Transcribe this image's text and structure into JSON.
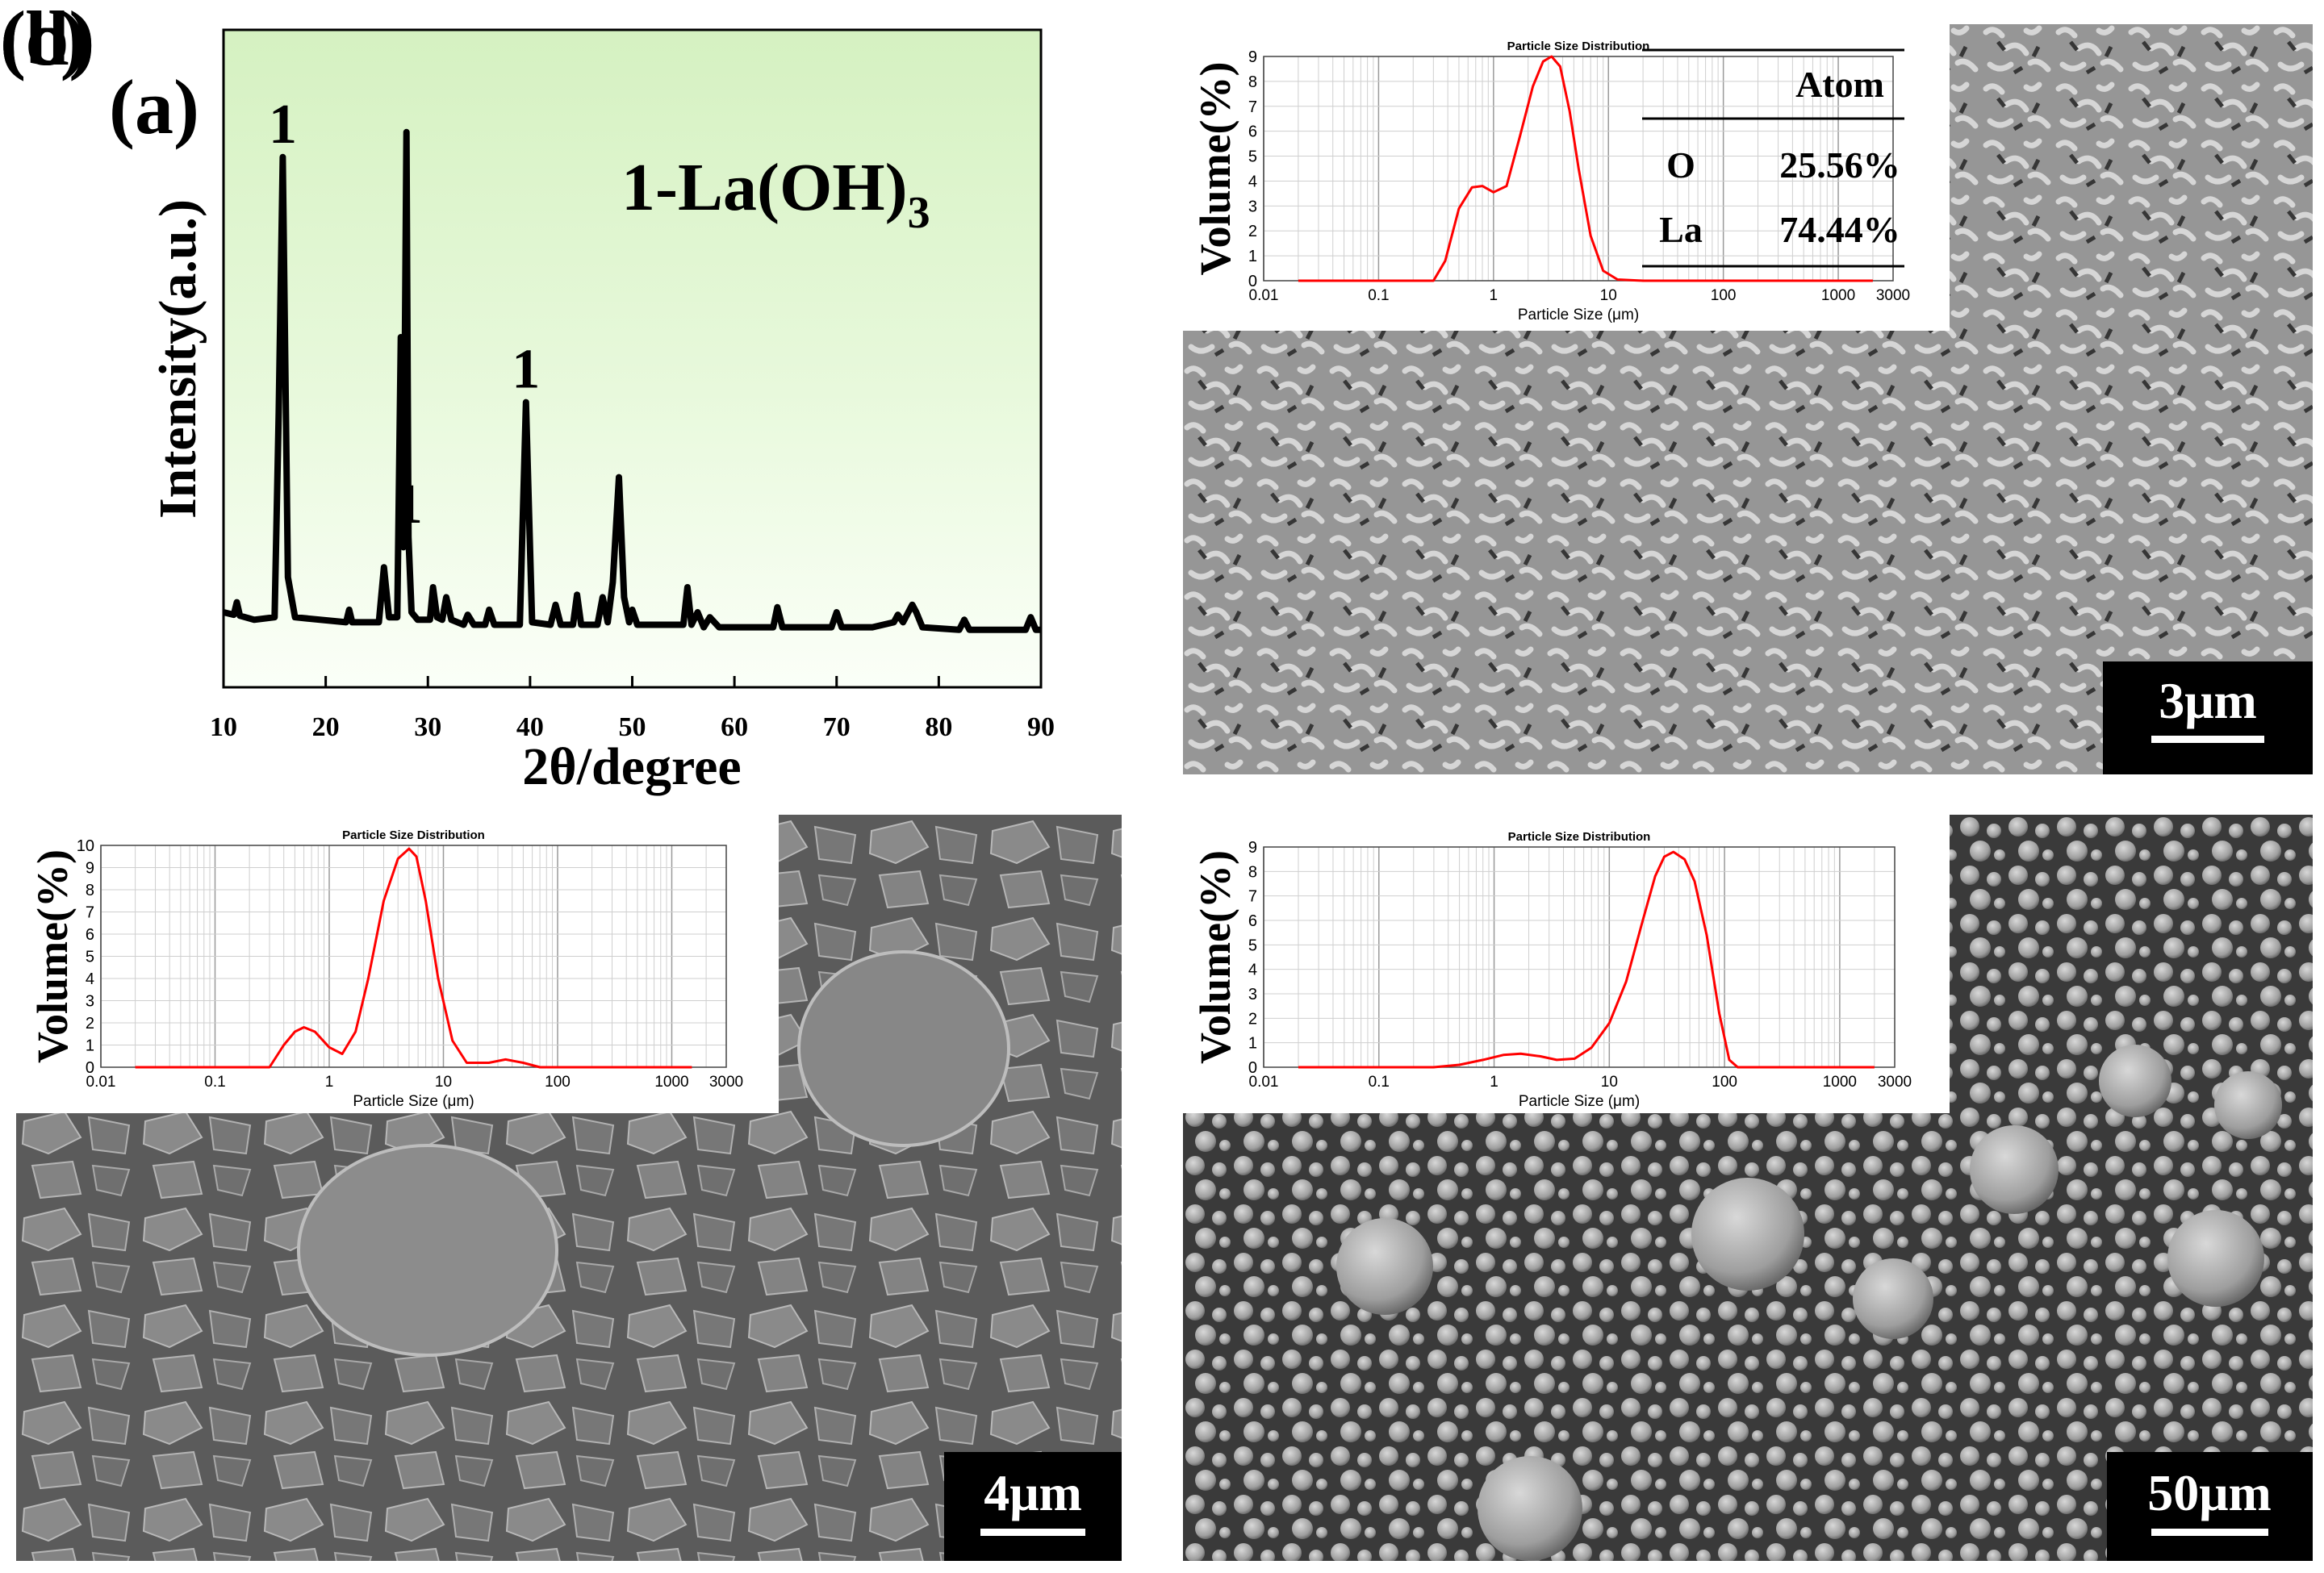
{
  "panels": {
    "a": {
      "letter": "(a)",
      "compound": "1-La(OH)",
      "compound_sub": "3",
      "ylabel": "Intensity(a.u.)",
      "xlabel": "2θ/degree",
      "peak_markers": [
        "1",
        "1",
        "1"
      ]
    },
    "b": {
      "letter": "(b)",
      "scale_bar": "3μm",
      "table": {
        "header": "Atom",
        "rows": [
          {
            "element": "O",
            "value": "25.56%"
          },
          {
            "element": "La",
            "value": "74.44%"
          }
        ]
      }
    },
    "c": {
      "letter": "(c)",
      "scale_bar": "4μm"
    },
    "d": {
      "letter": "(d)",
      "scale_bar": "50μm"
    }
  },
  "chart_data": [
    {
      "id": "a",
      "type": "line",
      "title": "",
      "xlabel": "2θ/degree",
      "ylabel": "Intensity(a.u.)",
      "xlim": [
        10,
        90
      ],
      "ylim": [
        0,
        100
      ],
      "xticks": [
        10,
        20,
        30,
        40,
        50,
        60,
        70,
        80,
        90
      ],
      "grid": false,
      "background": [
        "#d7f3c4",
        "#eafbdc",
        "#ffffff"
      ],
      "line_color": "#000000",
      "x": [
        10,
        11,
        11.3,
        11.6,
        13,
        15,
        15.4,
        15.8,
        16.3,
        17,
        22,
        22.3,
        22.6,
        25.2,
        25.7,
        26.2,
        27.0,
        27.35,
        27.6,
        27.9,
        28.1,
        28.4,
        29,
        30.2,
        30.5,
        30.9,
        31.4,
        31.8,
        32.3,
        33.5,
        33.9,
        34.5,
        35.6,
        36,
        36.5,
        39,
        39.6,
        40.2,
        42,
        42.5,
        43,
        44.2,
        44.6,
        45,
        46.6,
        47.1,
        47.6,
        48.1,
        48.7,
        49.2,
        49.7,
        50,
        50.5,
        55,
        55.4,
        55.8,
        56.4,
        57,
        57.6,
        58.5,
        63.8,
        64.2,
        64.7,
        69.5,
        70,
        70.5,
        73.5,
        75.6,
        76,
        76.5,
        77.4,
        77.8,
        78.4,
        82,
        82.5,
        83,
        88.5,
        89,
        89.5,
        90
      ],
      "y": [
        5,
        4.5,
        7,
        4.3,
        3.5,
        4,
        45,
        96,
        12,
        4,
        3,
        5.5,
        3,
        3,
        14,
        4,
        4,
        60,
        18,
        101,
        20,
        5,
        3.5,
        3.5,
        10,
        4,
        3.5,
        8,
        3.5,
        2.5,
        4.5,
        2.5,
        2.5,
        5.5,
        2.5,
        2.5,
        47,
        3,
        2.5,
        6.5,
        2.5,
        2.5,
        8.5,
        2.5,
        2.5,
        8,
        3,
        11,
        32,
        8,
        3,
        5.5,
        2.5,
        2.5,
        10,
        2.5,
        5,
        2,
        4,
        2,
        2,
        6,
        2,
        2,
        5,
        2,
        2,
        3,
        4.5,
        3,
        6.5,
        5,
        2,
        1.5,
        3.5,
        1.5,
        1.5,
        4,
        1.5,
        1.5
      ],
      "peak_marker_x": [
        15.8,
        28.1,
        39.6
      ]
    },
    {
      "id": "b-psd",
      "type": "line",
      "title": "Particle Size Distribution",
      "xlabel": "Particle Size (μm)",
      "ylabel": "Volume(%)",
      "xscale": "log",
      "xlim": [
        0.01,
        3000
      ],
      "ylim": [
        0,
        9
      ],
      "xtick_labels": [
        "0.01",
        "0.1",
        "1",
        "10",
        "100",
        "1000",
        "3000"
      ],
      "yticks": [
        0,
        1,
        2,
        3,
        4,
        5,
        6,
        7,
        8,
        9
      ],
      "grid": true,
      "line_color": "#ff0000",
      "x": [
        0.02,
        0.3,
        0.38,
        0.5,
        0.65,
        0.8,
        1.0,
        1.3,
        1.7,
        2.2,
        2.7,
        3.2,
        3.8,
        4.6,
        5.5,
        7,
        9,
        12,
        20,
        2000
      ],
      "y": [
        0,
        0,
        0.8,
        2.9,
        3.75,
        3.8,
        3.55,
        3.8,
        5.8,
        7.8,
        8.8,
        9.0,
        8.6,
        6.8,
        4.5,
        1.8,
        0.4,
        0.05,
        0,
        0
      ]
    },
    {
      "id": "c-psd",
      "type": "line",
      "title": "Particle Size Distribution",
      "xlabel": "Particle Size (μm)",
      "ylabel": "Volume(%)",
      "xscale": "log",
      "xlim": [
        0.01,
        3000
      ],
      "ylim": [
        0,
        10
      ],
      "xtick_labels": [
        "0.01",
        "0.1",
        "1",
        "10",
        "100",
        "1000",
        "3000"
      ],
      "yticks": [
        0,
        1,
        2,
        3,
        4,
        5,
        6,
        7,
        8,
        9,
        10
      ],
      "grid": true,
      "line_color": "#ff0000",
      "x": [
        0.02,
        0.3,
        0.4,
        0.5,
        0.6,
        0.75,
        1.0,
        1.3,
        1.7,
        2.2,
        3.0,
        4.0,
        5.0,
        5.8,
        7,
        9,
        12,
        16,
        25,
        35,
        50,
        70,
        1500
      ],
      "y": [
        0,
        0,
        1.0,
        1.6,
        1.8,
        1.6,
        0.9,
        0.6,
        1.6,
        4.0,
        7.5,
        9.4,
        9.85,
        9.5,
        7.5,
        4.0,
        1.2,
        0.2,
        0.2,
        0.35,
        0.2,
        0,
        0
      ]
    },
    {
      "id": "d-psd",
      "type": "line",
      "title": "Particle Size Distribution",
      "xlabel": "Particle Size (μm)",
      "ylabel": "Volume(%)",
      "xscale": "log",
      "xlim": [
        0.01,
        3000
      ],
      "ylim": [
        0,
        9
      ],
      "xtick_labels": [
        "0.01",
        "0.1",
        "1",
        "10",
        "100",
        "1000",
        "3000"
      ],
      "yticks": [
        0,
        1,
        2,
        3,
        4,
        5,
        6,
        7,
        8,
        9
      ],
      "grid": true,
      "line_color": "#ff0000",
      "x": [
        0.02,
        0.3,
        0.5,
        0.8,
        1.2,
        1.7,
        2.5,
        3.5,
        5,
        7,
        10,
        14,
        19,
        25,
        30,
        36,
        45,
        55,
        70,
        90,
        110,
        130,
        2000
      ],
      "y": [
        0,
        0,
        0.1,
        0.3,
        0.5,
        0.55,
        0.45,
        0.3,
        0.35,
        0.8,
        1.8,
        3.5,
        5.8,
        7.8,
        8.6,
        8.8,
        8.5,
        7.6,
        5.4,
        2.2,
        0.3,
        0,
        0
      ]
    }
  ]
}
